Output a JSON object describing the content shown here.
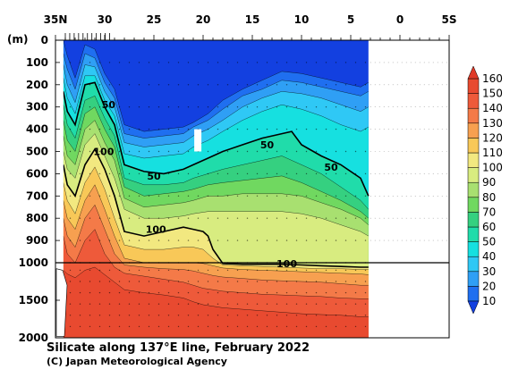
{
  "chart_data": {
    "type": "contour",
    "title": "Silicate along 137°E line, February 2022",
    "credit": "(C) Japan Meteorological Agency",
    "ylabel": "(m)",
    "x_axis": {
      "ticks": [
        {
          "value": 35,
          "label": "35N"
        },
        {
          "value": 30,
          "label": "30"
        },
        {
          "value": 25,
          "label": "25"
        },
        {
          "value": 20,
          "label": "20"
        },
        {
          "value": 15,
          "label": "15"
        },
        {
          "value": 10,
          "label": "10"
        },
        {
          "value": 5,
          "label": "5"
        },
        {
          "value": 0,
          "label": "0"
        },
        {
          "value": -5,
          "label": "5S"
        }
      ],
      "range": [
        35,
        -5
      ]
    },
    "y_axis": {
      "upper_ticks": [
        0,
        100,
        200,
        300,
        400,
        500,
        600,
        700,
        800,
        900,
        1000
      ],
      "lower_ticks": [
        1500,
        2000
      ],
      "upper_range": [
        0,
        1000
      ],
      "lower_range": [
        1000,
        2000
      ]
    },
    "colorbar": {
      "levels": [
        10,
        20,
        30,
        40,
        50,
        60,
        70,
        80,
        90,
        100,
        110,
        120,
        130,
        140,
        150,
        160
      ],
      "colors": [
        "#1340e0",
        "#1f6ff0",
        "#2f9ff5",
        "#2fc8f5",
        "#16e0e0",
        "#20dcaa",
        "#35d080",
        "#70d860",
        "#a8e070",
        "#d8ec80",
        "#f2e880",
        "#f8c858",
        "#f7a050",
        "#f47a48",
        "#ee5a3a",
        "#e84a30",
        "#e03a28"
      ]
    },
    "contour_labels": [
      {
        "value": "50",
        "lat": 29.6,
        "depth": 290
      },
      {
        "value": "100",
        "lat": 30.1,
        "depth": 500
      },
      {
        "value": "50",
        "lat": 25.0,
        "depth": 610
      },
      {
        "value": "100",
        "lat": 24.8,
        "depth": 850
      },
      {
        "value": "50",
        "lat": 13.5,
        "depth": 470
      },
      {
        "value": "50",
        "lat": 7.0,
        "depth": 570
      },
      {
        "value": "100",
        "lat": 11.5,
        "depth": 1010
      }
    ]
  }
}
